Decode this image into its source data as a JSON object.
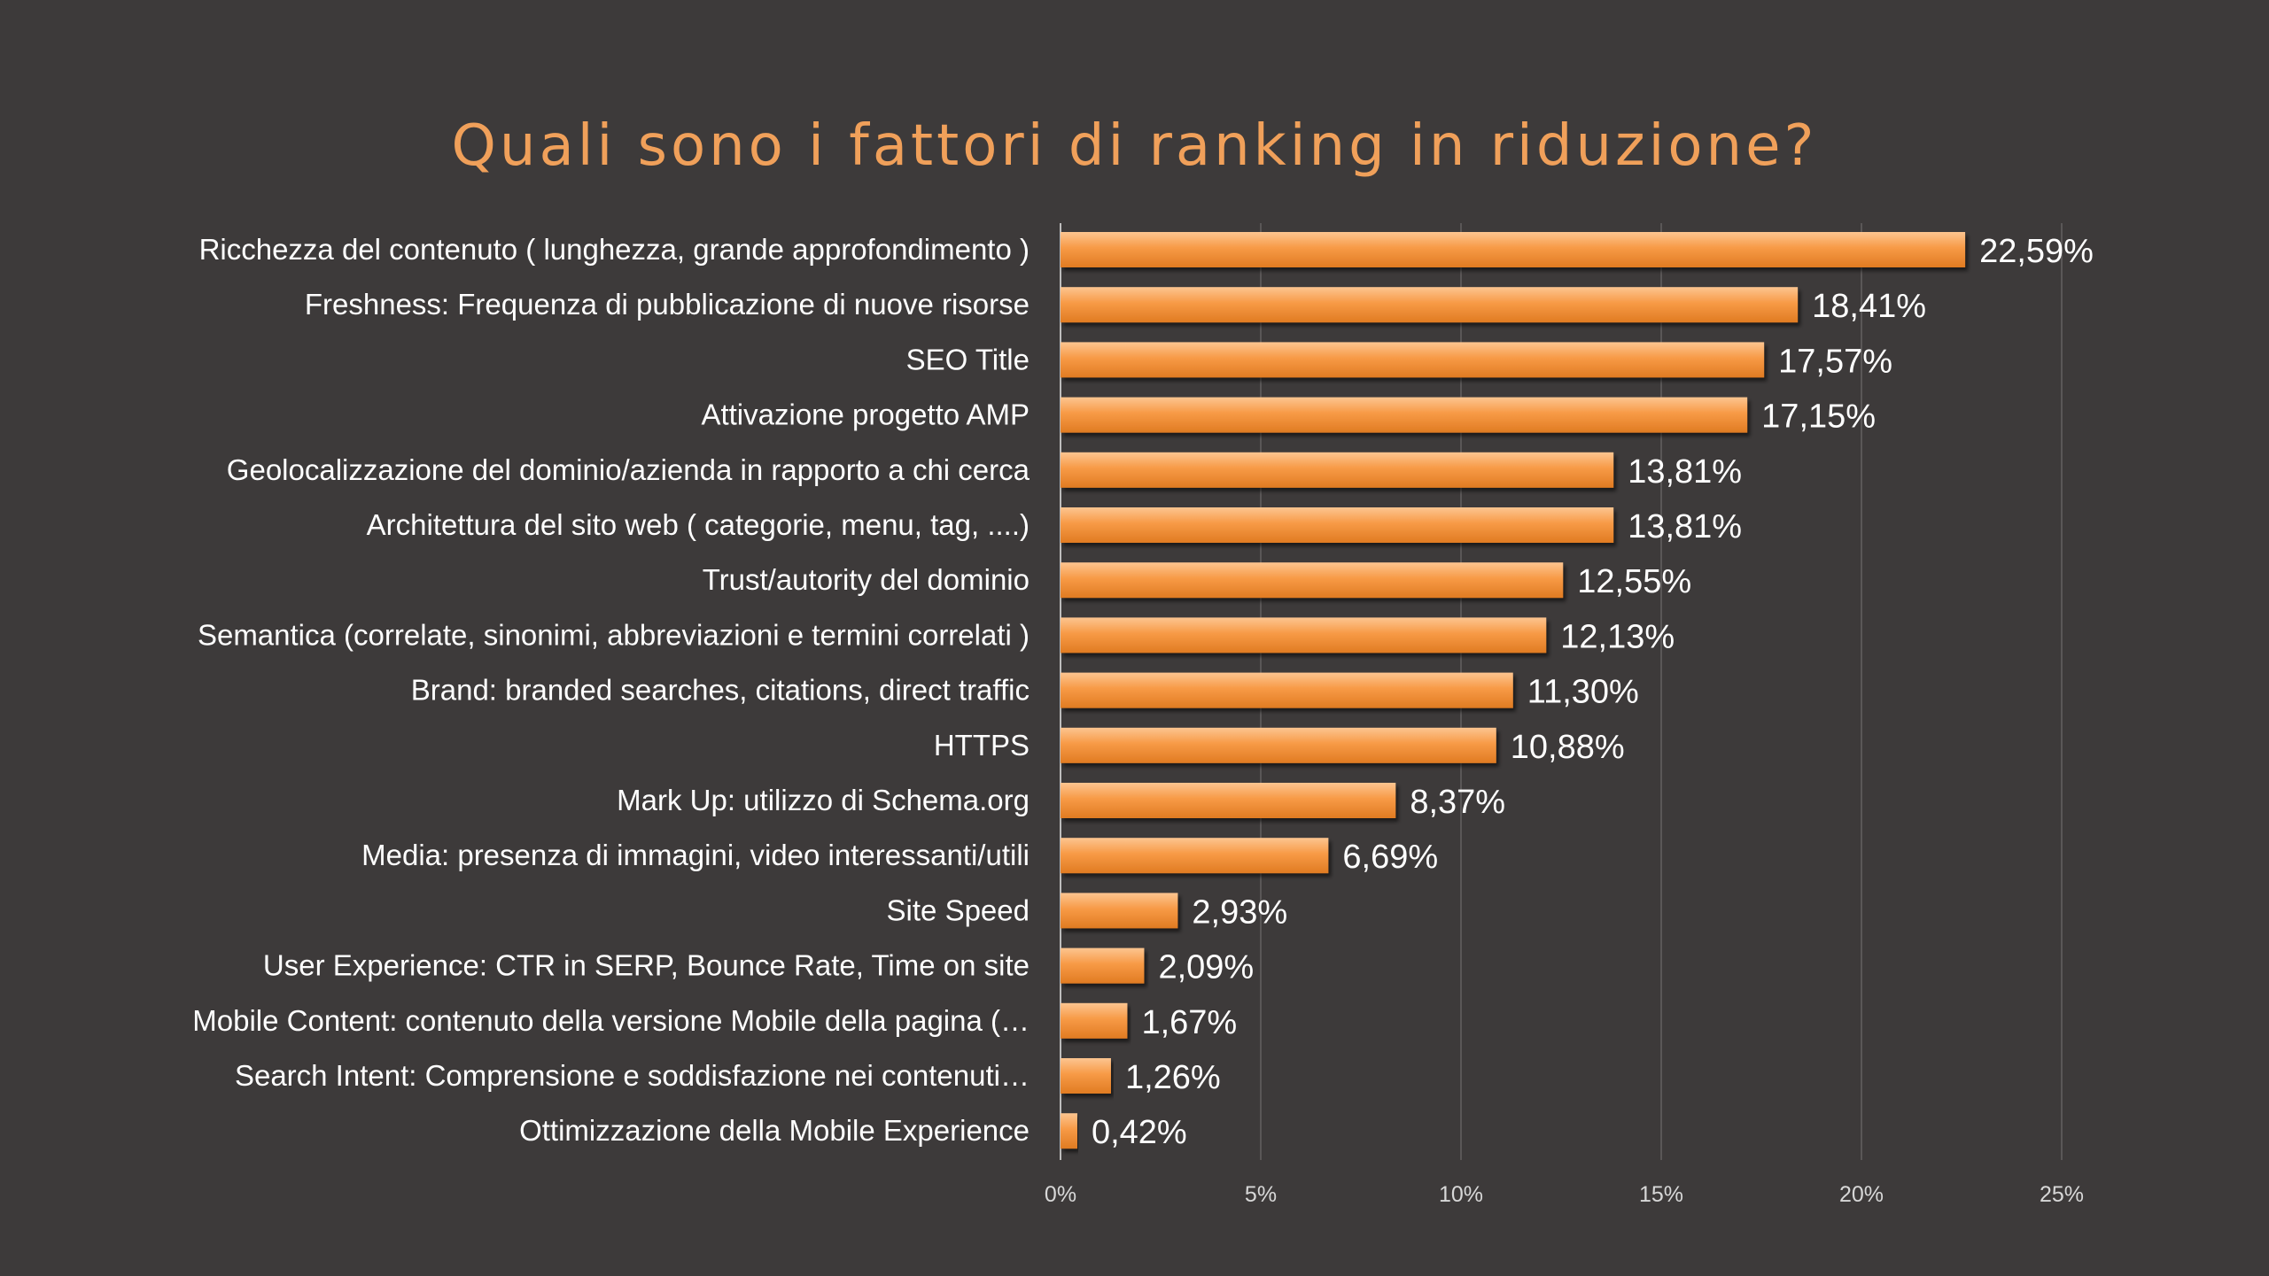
{
  "chart_data": {
    "type": "bar",
    "orientation": "horizontal",
    "title": "Quali sono i fattori di ranking in riduzione?",
    "categories": [
      "Ricchezza del contenuto ( lunghezza, grande approfondimento )",
      "Freshness: Frequenza di pubblicazione di nuove risorse",
      "SEO Title",
      "Attivazione progetto AMP",
      "Geolocalizzazione del dominio/azienda in rapporto a chi cerca",
      "Architettura del sito web ( categorie, menu, tag, ....)",
      "Trust/autority del dominio",
      "Semantica (correlate, sinonimi, abbreviazioni e termini correlati )",
      "Brand: branded searches, citations, direct traffic",
      "HTTPS",
      "Mark Up: utilizzo di Schema.org",
      "Media: presenza di immagini, video interessanti/utili",
      "Site Speed",
      "User Experience: CTR in SERP, Bounce Rate, Time on site",
      "Mobile Content: contenuto della versione Mobile della pagina (…",
      "Search Intent: Comprensione e soddisfazione nei contenuti…",
      "Ottimizzazione della Mobile Experience"
    ],
    "values": [
      22.59,
      18.41,
      17.57,
      17.15,
      13.81,
      13.81,
      12.55,
      12.13,
      11.3,
      10.88,
      8.37,
      6.69,
      2.93,
      2.09,
      1.67,
      1.26,
      0.42
    ],
    "value_labels": [
      "22,59%",
      "18,41%",
      "17,57%",
      "17,15%",
      "13,81%",
      "13,81%",
      "12,55%",
      "12,13%",
      "11,30%",
      "10,88%",
      "8,37%",
      "6,69%",
      "2,93%",
      "2,09%",
      "1,67%",
      "1,26%",
      "0,42%"
    ],
    "xticks": [
      0,
      5,
      10,
      15,
      20,
      25
    ],
    "xtick_labels": [
      "0%",
      "5%",
      "10%",
      "15%",
      "20%",
      "25%"
    ],
    "xlim": [
      0,
      25
    ],
    "grid": true,
    "legend": "none",
    "colors": {
      "bar": "#f79a46",
      "bar_highlight": "#fcc590",
      "background": "#3d3a3a",
      "title": "#f0a05a",
      "grid": "#5a5757"
    }
  }
}
